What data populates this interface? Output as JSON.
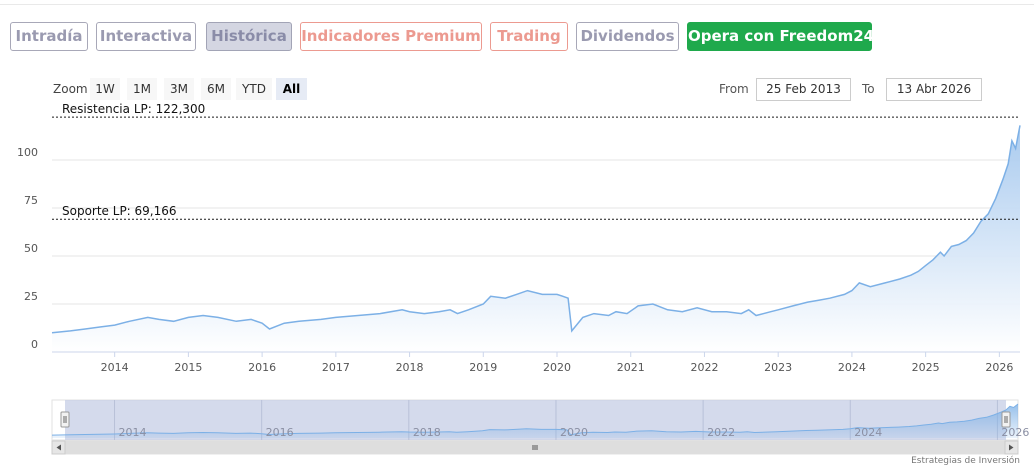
{
  "tabs": [
    {
      "label": "Intradía",
      "style": "grey"
    },
    {
      "label": "Interactiva",
      "style": "grey"
    },
    {
      "label": "Histórica",
      "style": "active"
    },
    {
      "label": "Indicadores Premium",
      "style": "salmon"
    },
    {
      "label": "Trading",
      "style": "salmon"
    },
    {
      "label": "Dividendos",
      "style": "grey"
    },
    {
      "label": "Opera con Freedom24",
      "style": "green"
    }
  ],
  "zoom": {
    "label": "Zoom",
    "buttons": [
      "1W",
      "1M",
      "3M",
      "6M",
      "YTD",
      "All"
    ],
    "selected": "All"
  },
  "range": {
    "from_label": "From",
    "from_value": "25 Feb 2013",
    "to_label": "To",
    "to_value": "13 Abr 2026"
  },
  "chart_data": {
    "type": "area",
    "ylim": [
      0,
      125
    ],
    "yticks": [
      0,
      25,
      50,
      75,
      100
    ],
    "y_tick_labels": [
      "0",
      "25",
      "50",
      "75",
      "100"
    ],
    "x_tick_labels": [
      "2014",
      "2015",
      "2016",
      "2017",
      "2018",
      "2019",
      "2020",
      "2021",
      "2022",
      "2023",
      "2024",
      "2025",
      "2026"
    ],
    "x": [
      2013.15,
      2013.4,
      2013.6,
      2013.8,
      2014.0,
      2014.2,
      2014.45,
      2014.6,
      2014.8,
      2015.0,
      2015.2,
      2015.4,
      2015.65,
      2015.85,
      2016.0,
      2016.1,
      2016.3,
      2016.5,
      2016.8,
      2017.0,
      2017.3,
      2017.6,
      2017.9,
      2018.0,
      2018.2,
      2018.4,
      2018.55,
      2018.65,
      2018.8,
      2019.0,
      2019.1,
      2019.3,
      2019.45,
      2019.6,
      2019.8,
      2020.0,
      2020.08,
      2020.15,
      2020.2,
      2020.35,
      2020.5,
      2020.7,
      2020.8,
      2020.95,
      2021.1,
      2021.3,
      2021.5,
      2021.7,
      2021.9,
      2022.1,
      2022.3,
      2022.5,
      2022.6,
      2022.7,
      2022.9,
      2023.0,
      2023.2,
      2023.4,
      2023.55,
      2023.7,
      2023.9,
      2024.0,
      2024.1,
      2024.25,
      2024.45,
      2024.65,
      2024.8,
      2024.9,
      2025.0,
      2025.1,
      2025.2,
      2025.25,
      2025.35,
      2025.45,
      2025.55,
      2025.65,
      2025.75,
      2025.85,
      2025.95,
      2026.05,
      2026.12,
      2026.17,
      2026.22,
      2026.28
    ],
    "values": [
      10,
      11,
      12,
      13,
      14,
      16,
      18,
      17,
      16,
      18,
      19,
      18,
      16,
      17,
      15,
      12,
      15,
      16,
      17,
      18,
      19,
      20,
      22,
      21,
      20,
      21,
      22,
      20,
      22,
      25,
      29,
      28,
      30,
      32,
      30,
      30,
      29,
      28,
      11,
      18,
      20,
      19,
      21,
      20,
      24,
      25,
      22,
      21,
      23,
      21,
      21,
      20,
      22,
      19,
      21,
      22,
      24,
      26,
      27,
      28,
      30,
      32,
      36,
      34,
      36,
      38,
      40,
      42,
      45,
      48,
      52,
      50,
      55,
      56,
      58,
      62,
      68,
      72,
      80,
      90,
      98,
      110,
      106,
      118
    ],
    "plot_lines": [
      {
        "label": "Resistencia LP: 122,300",
        "value": 122.3
      },
      {
        "label": "Soporte LP: 69,166",
        "value": 69.166
      }
    ],
    "navigator_labels": [
      "2014",
      "2016",
      "2018",
      "2020",
      "2022",
      "2024",
      "2026"
    ],
    "colors": {
      "line": "#7cb0e6",
      "fill_top": "#a5c8ee",
      "fill_bottom": "#ffffff",
      "grid": "#e6e6e6"
    }
  },
  "credit": "Estrategias de Inversión"
}
